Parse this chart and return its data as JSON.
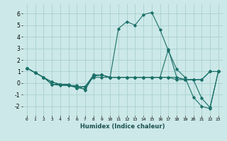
{
  "title": "",
  "xlabel": "Humidex (Indice chaleur)",
  "ylabel": "",
  "background_color": "#cce8e8",
  "line_color": "#1a7068",
  "grid_color": "#aad0d0",
  "xlim": [
    -0.5,
    23.5
  ],
  "ylim": [
    -2.8,
    6.8
  ],
  "yticks": [
    -2,
    -1,
    0,
    1,
    2,
    3,
    4,
    5,
    6
  ],
  "xticks": [
    0,
    1,
    2,
    3,
    4,
    5,
    6,
    7,
    8,
    9,
    10,
    11,
    12,
    13,
    14,
    15,
    16,
    17,
    18,
    19,
    20,
    21,
    22,
    23
  ],
  "series": [
    {
      "x": [
        0,
        1,
        2,
        3,
        4,
        5,
        6,
        7,
        8,
        9,
        10,
        11,
        12,
        13,
        14,
        15,
        16,
        17,
        18,
        19,
        20,
        21,
        22,
        23
      ],
      "y": [
        1.3,
        0.9,
        0.5,
        0.1,
        -0.1,
        -0.1,
        -0.4,
        -0.5,
        0.6,
        0.7,
        0.5,
        0.5,
        0.5,
        0.5,
        0.5,
        0.5,
        0.5,
        0.5,
        0.3,
        0.3,
        0.3,
        0.3,
        1.0,
        1.0
      ]
    },
    {
      "x": [
        0,
        1,
        2,
        3,
        4,
        5,
        6,
        7,
        8,
        9,
        10,
        11,
        12,
        13,
        14,
        15,
        16,
        17,
        18,
        19,
        20,
        21,
        22,
        23
      ],
      "y": [
        1.3,
        0.9,
        0.5,
        -0.1,
        -0.2,
        -0.2,
        -0.2,
        -0.6,
        0.7,
        0.7,
        0.5,
        4.7,
        5.3,
        5.0,
        5.9,
        6.1,
        4.6,
        2.8,
        1.2,
        0.5,
        -1.2,
        -2.0,
        -2.2,
        1.0
      ]
    },
    {
      "x": [
        0,
        1,
        2,
        3,
        4,
        5,
        6,
        7,
        8,
        9,
        10,
        11,
        12,
        13,
        14,
        15,
        16,
        17,
        18,
        19,
        20,
        21,
        22,
        23
      ],
      "y": [
        1.3,
        0.9,
        0.5,
        0.1,
        -0.1,
        -0.2,
        -0.4,
        -0.3,
        0.5,
        0.5,
        0.5,
        0.5,
        0.5,
        0.5,
        0.5,
        0.5,
        0.5,
        2.9,
        0.5,
        0.3,
        0.3,
        -1.3,
        -2.1,
        1.0
      ]
    },
    {
      "x": [
        0,
        1,
        2,
        3,
        4,
        5,
        6,
        7,
        8,
        9,
        10,
        11,
        12,
        13,
        14,
        15,
        16,
        17,
        18,
        19,
        20,
        21,
        22,
        23
      ],
      "y": [
        1.3,
        0.9,
        0.5,
        -0.1,
        -0.1,
        -0.2,
        -0.3,
        -0.3,
        0.7,
        0.7,
        0.5,
        0.5,
        0.5,
        0.5,
        0.5,
        0.5,
        0.5,
        0.5,
        0.5,
        0.3,
        0.3,
        0.3,
        1.0,
        1.0
      ]
    }
  ]
}
